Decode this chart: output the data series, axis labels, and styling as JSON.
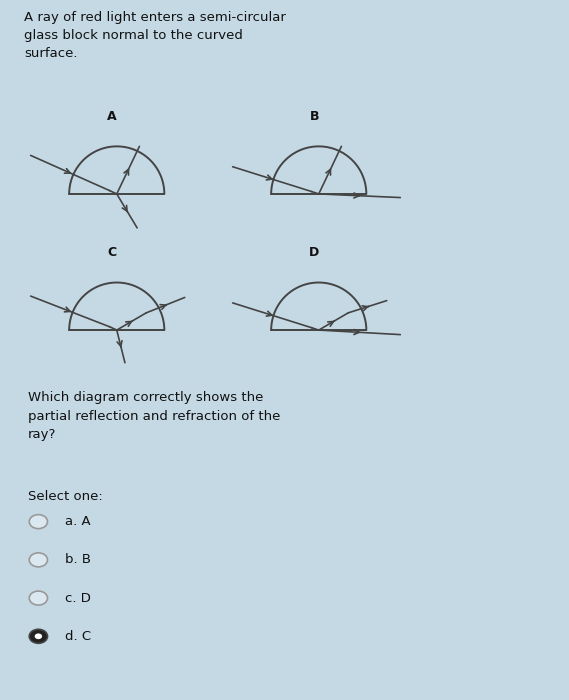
{
  "bg_outer": "#c5d9e5",
  "bg_white": "#ffffff",
  "bg_light": "#cde0ec",
  "title_text": "A ray of red light enters a semi-circular\nglass block normal to the curved\nsurface.",
  "question_text": "Which diagram correctly shows the\npartial reflection and refraction of the\nray?",
  "select_text": "Select one:",
  "options": [
    "a. A",
    "b. B",
    "c. D",
    "d. C"
  ],
  "selected": 3,
  "line_color": "#444444",
  "label_color": "#111111",
  "radio_fill": "#333333",
  "radio_edge": "#888888",
  "sidebar_color": "#b0b8be"
}
